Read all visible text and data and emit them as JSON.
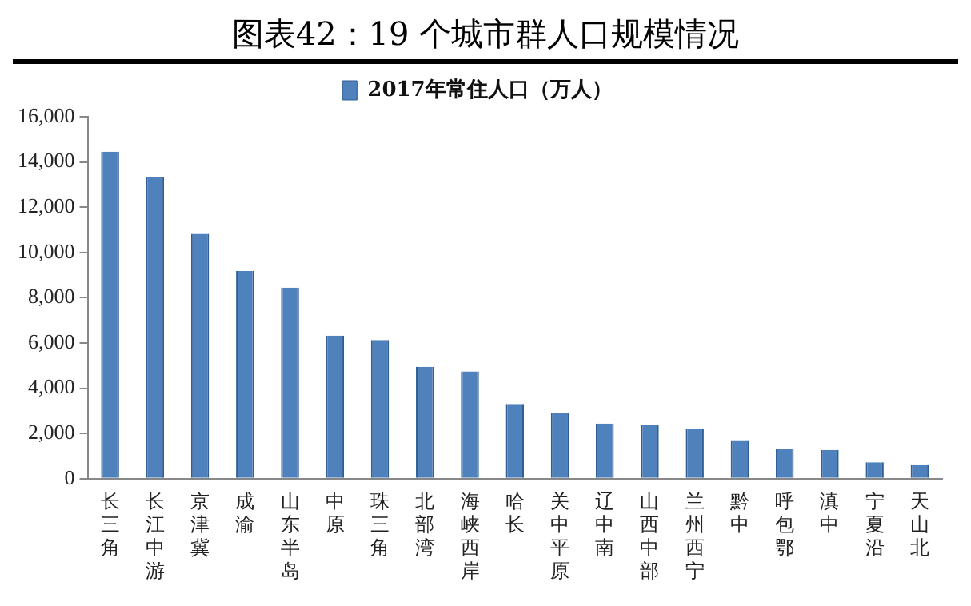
{
  "chart_data": {
    "type": "bar",
    "title": "图表42：19 个城市群人口规模情况",
    "categories": [
      "长三角",
      "长江中游",
      "京津冀",
      "成渝",
      "山东半岛",
      "中原",
      "珠三角",
      "北部湾",
      "海峡西岸",
      "哈长",
      "关中平原",
      "辽中南",
      "山西中部",
      "兰州西宁",
      "黔中",
      "呼包鄂",
      "滇中",
      "宁夏沿",
      "天山北"
    ],
    "series": [
      {
        "name": "2017年常住人口（万人）",
        "color": "#4f81bd",
        "values": [
          14450,
          13330,
          10820,
          9180,
          8450,
          6330,
          6130,
          4950,
          4750,
          3310,
          2910,
          2440,
          2380,
          2180,
          1710,
          1330,
          1270,
          730,
          600
        ]
      }
    ],
    "ylim": [
      0,
      16000
    ],
    "yticks": [
      {
        "value": 0,
        "label": "0"
      },
      {
        "value": 2000,
        "label": "2,000"
      },
      {
        "value": 4000,
        "label": "4,000"
      },
      {
        "value": 6000,
        "label": "6,000"
      },
      {
        "value": 8000,
        "label": "8,000"
      },
      {
        "value": 10000,
        "label": "10,000"
      },
      {
        "value": 12000,
        "label": "12,000"
      },
      {
        "value": 14000,
        "label": "14,000"
      },
      {
        "value": 16000,
        "label": "16,000"
      }
    ],
    "grid": false,
    "legend": "top"
  }
}
